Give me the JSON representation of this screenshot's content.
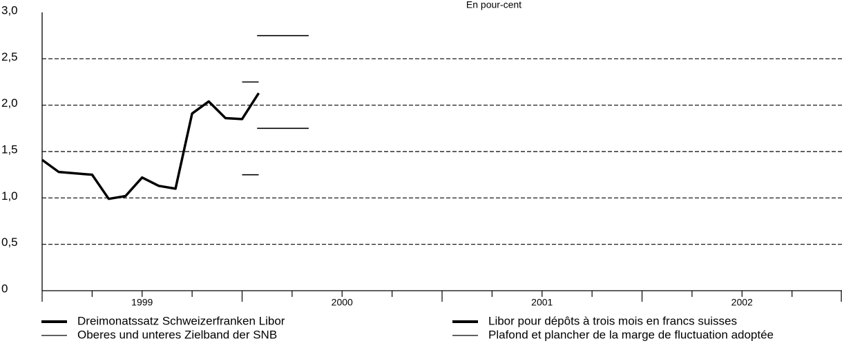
{
  "chart_data": {
    "type": "line",
    "subtitle": "En pour-cent",
    "xlim": [
      1999,
      2003
    ],
    "xticks": [
      {
        "value": 1999.5,
        "label": "1999"
      },
      {
        "value": 2000.5,
        "label": "2000"
      },
      {
        "value": 2001.5,
        "label": "2001"
      },
      {
        "value": 2002.5,
        "label": "2002"
      }
    ],
    "minor_xticks": [
      1999,
      1999.25,
      1999.5,
      1999.75,
      2000,
      2000.25,
      2000.5,
      2000.75,
      2001,
      2001.25,
      2001.5,
      2001.75,
      2002,
      2002.25,
      2002.5,
      2002.75,
      2003
    ],
    "ylim": [
      0,
      3
    ],
    "yticks": [
      0,
      {
        "value": 0.5,
        "label": "0,5"
      },
      {
        "value": 1,
        "label": "1,0"
      },
      {
        "value": 1.5,
        "label": "1,5"
      },
      {
        "value": 2,
        "label": "2,0"
      },
      {
        "value": 2.5,
        "label": "2,5"
      },
      {
        "value": 3,
        "label": "3,0"
      }
    ],
    "grid": true,
    "series": [
      {
        "names": [
          "Dreimonatssatz Schweizerfranken Libor",
          "Libor pour dépôts à trois mois en francs suisses"
        ],
        "color": "#000000",
        "x": [
          1999,
          1999.083,
          1999.25,
          1999.333,
          1999.417,
          1999.5,
          1999.583,
          1999.667,
          1999.75,
          1999.833,
          1999.917,
          2000,
          2000.083
        ],
        "values": [
          1.41,
          1.28,
          1.25,
          0.99,
          1.02,
          1.22,
          1.13,
          1.1,
          1.91,
          2.04,
          1.86,
          1.85,
          2.13
        ]
      },
      {
        "names": [
          "Oberes und unteres Zielband der SNB",
          "Plafond et plancher de la marge de fluctuation adoptée"
        ],
        "color": "#000000",
        "bands": [
          {
            "x0": 2000,
            "x1": 2000.083,
            "low": 1.25,
            "high": 2.25
          },
          {
            "x0": 2000.075,
            "x1": 2000.333,
            "low": 1.75,
            "high": 2.75
          }
        ]
      }
    ]
  }
}
